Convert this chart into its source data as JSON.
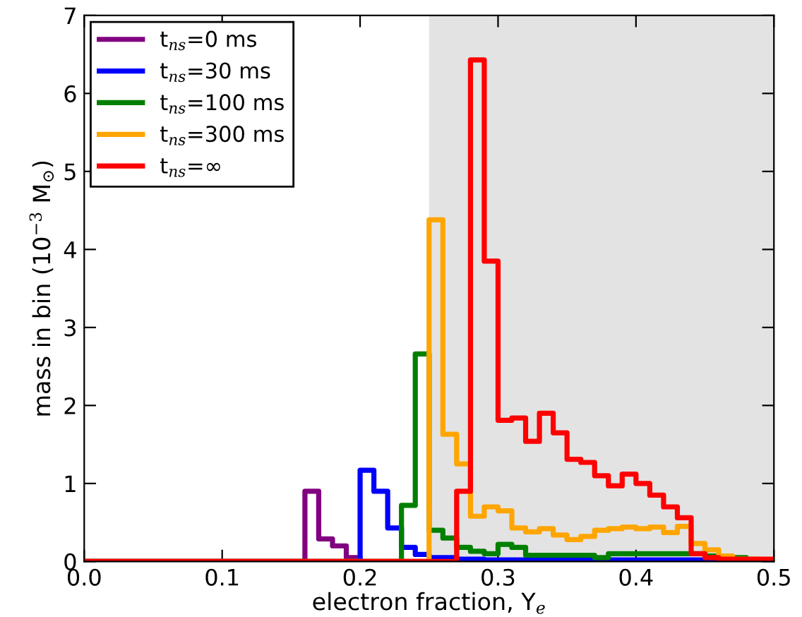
{
  "chart_data": {
    "type": "histogram",
    "xlabel": "electron fraction, Y$_{e}$",
    "ylabel": "mass in bin (10$^{−3}$ M$_{⊙}$)",
    "bins": [
      0,
      0.01,
      0.02,
      0.03,
      0.04,
      0.05,
      0.06,
      0.07,
      0.08,
      0.09,
      0.1,
      0.11,
      0.12,
      0.13,
      0.14,
      0.15,
      0.16,
      0.17,
      0.18,
      0.19,
      0.2,
      0.21,
      0.22,
      0.23,
      0.24,
      0.25,
      0.26,
      0.27,
      0.28,
      0.29,
      0.3,
      0.31,
      0.32,
      0.33,
      0.34,
      0.35,
      0.36,
      0.37,
      0.38,
      0.39,
      0.4,
      0.41,
      0.42,
      0.43,
      0.44,
      0.45,
      0.46,
      0.47,
      0.48,
      0.49,
      0.5
    ],
    "series": [
      {
        "name": "t$_{ns}$=0 ms",
        "color": "#800080",
        "values": [
          0,
          0,
          0,
          0,
          0,
          0,
          0,
          0,
          0,
          0,
          0,
          0,
          0,
          0,
          0,
          0,
          0.9,
          0.29,
          0.2,
          0.05,
          0,
          0,
          0,
          0,
          0,
          0,
          0,
          0,
          0,
          0,
          0,
          0,
          0,
          0,
          0,
          0,
          0,
          0,
          0,
          0,
          0,
          0,
          0,
          0,
          0,
          0,
          0,
          0,
          0,
          0
        ]
      },
      {
        "name": "t$_{ns}$=30 ms",
        "color": "#0000ff",
        "values": [
          0,
          0,
          0,
          0,
          0,
          0,
          0,
          0,
          0,
          0,
          0,
          0,
          0,
          0,
          0,
          0,
          0,
          0,
          0,
          0,
          1.17,
          0.9,
          0.43,
          0.18,
          0.09,
          0.05,
          0.05,
          0.03,
          0.03,
          0.02,
          0.02,
          0.02,
          0.02,
          0.02,
          0.02,
          0.02,
          0.02,
          0.02,
          0.02,
          0.02,
          0.02,
          0.02,
          0.02,
          0.02,
          0.02,
          0.02,
          0,
          0,
          0,
          0
        ]
      },
      {
        "name": "t$_{ns}$=100 ms",
        "color": "#008000",
        "values": [
          0,
          0,
          0,
          0,
          0,
          0,
          0,
          0,
          0,
          0,
          0,
          0,
          0,
          0,
          0,
          0,
          0,
          0,
          0,
          0,
          0,
          0,
          0,
          0.72,
          2.66,
          0.4,
          0.3,
          0.18,
          0.13,
          0.1,
          0.22,
          0.18,
          0.08,
          0.08,
          0.08,
          0.08,
          0.08,
          0.05,
          0.1,
          0.1,
          0.1,
          0.1,
          0.1,
          0.1,
          0.1,
          0.07,
          0.05,
          0.05,
          0.02,
          0.02
        ]
      },
      {
        "name": "t$_{ns}$=300 ms",
        "color": "#ffa500",
        "values": [
          0,
          0,
          0,
          0,
          0,
          0,
          0,
          0,
          0,
          0,
          0,
          0,
          0,
          0,
          0,
          0,
          0,
          0,
          0,
          0,
          0,
          0,
          0,
          0,
          0,
          4.38,
          1.63,
          1.25,
          0.58,
          0.7,
          0.65,
          0.43,
          0.38,
          0.42,
          0.34,
          0.28,
          0.32,
          0.4,
          0.42,
          0.44,
          0.42,
          0.44,
          0.37,
          0.45,
          0.23,
          0.15,
          0.07,
          0.03,
          0.03,
          0
        ]
      },
      {
        "name": "t$_{ns}$=∞",
        "color": "#ff0000",
        "values": [
          0,
          0,
          0,
          0,
          0,
          0,
          0,
          0,
          0,
          0,
          0,
          0,
          0,
          0,
          0,
          0,
          0,
          0,
          0,
          0,
          0,
          0,
          0,
          0,
          0,
          0,
          0,
          0.9,
          6.43,
          3.85,
          1.81,
          1.84,
          1.54,
          1.9,
          1.65,
          1.31,
          1.27,
          1.1,
          0.97,
          1.12,
          1.0,
          0.85,
          0.7,
          0.56,
          0.1,
          0.05,
          0.03,
          0.03,
          0.03,
          0.03
        ]
      }
    ],
    "bands": [
      {
        "axis": "x",
        "from": 0.25,
        "to": 0.5,
        "color": "#e3e3e3"
      }
    ],
    "xlim": [
      0,
      0.5
    ],
    "ylim": [
      0,
      7
    ],
    "xticks": [
      {
        "value": 0,
        "label": "0.0"
      },
      {
        "value": 0.1,
        "label": "0.1"
      },
      {
        "value": 0.2,
        "label": "0.2"
      },
      {
        "value": 0.3,
        "label": "0.3"
      },
      {
        "value": 0.4,
        "label": "0.4"
      },
      {
        "value": 0.5,
        "label": "0.5"
      }
    ],
    "yticks": [
      0,
      1,
      2,
      3,
      4,
      5,
      6,
      7
    ],
    "legend": "top left",
    "grid": false
  }
}
